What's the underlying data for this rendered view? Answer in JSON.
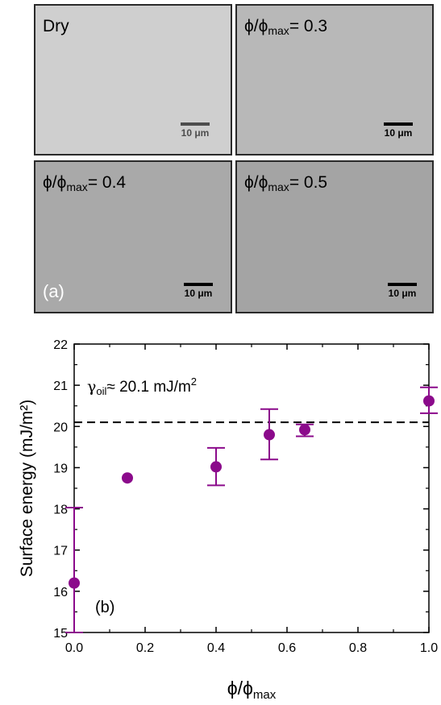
{
  "micrographs": [
    {
      "label": "Dry",
      "scale_bar": "10 μm",
      "bg": "#cfcfcf"
    },
    {
      "label_prefix": "ϕ/ϕ",
      "label_sub": "max",
      "label_value": "= 0.3",
      "scale_bar": "10 μm",
      "bg": "#b8b8b8"
    },
    {
      "label_prefix": "ϕ/ϕ",
      "label_sub": "max",
      "label_value": "= 0.4",
      "scale_bar": "10 μm",
      "bg": "#a9a9a9",
      "tag": "(a)"
    },
    {
      "label_prefix": "ϕ/ϕ",
      "label_sub": "max",
      "label_value": "= 0.5",
      "scale_bar": "10 μm",
      "bg": "#a4a4a4"
    }
  ],
  "chart_data": {
    "type": "scatter",
    "xlabel_main": "ϕ/ϕ",
    "xlabel_sub": "max",
    "ylabel": "Surface energy (mJ/m²)",
    "xlim": [
      0.0,
      1.0
    ],
    "ylim": [
      15,
      22
    ],
    "x_ticks": [
      "0.0",
      "0.2",
      "0.4",
      "0.6",
      "0.8",
      "1.0"
    ],
    "y_ticks": [
      "15",
      "16",
      "17",
      "18",
      "19",
      "20",
      "21",
      "22"
    ],
    "x": [
      0.0,
      0.15,
      0.4,
      0.55,
      0.65,
      1.0
    ],
    "y": [
      16.2,
      18.75,
      19.02,
      19.8,
      19.92,
      20.62
    ],
    "err_low": [
      15.0,
      null,
      18.57,
      19.2,
      19.76,
      20.32
    ],
    "err_high": [
      18.03,
      null,
      19.48,
      20.42,
      20.05,
      20.95
    ],
    "reference_line": {
      "y": 20.1,
      "style": "dashed",
      "color": "#000000"
    },
    "annotation": {
      "symbol": "γ",
      "sub": "oil",
      "text": "≈ 20.1 mJ/m",
      "sup": "2"
    },
    "panel_tag": "(b)",
    "marker_color": "#8b0a8b",
    "grid": false
  }
}
